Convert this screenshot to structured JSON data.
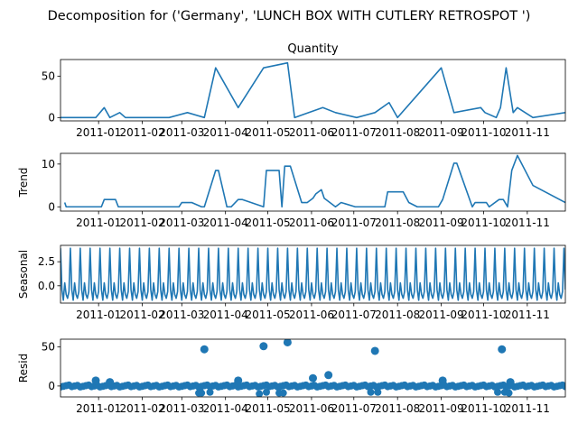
{
  "figure": {
    "suptitle": "Decomposition for ('Germany', 'LUNCH BOX WITH CUTLERY RETROSPOT ')"
  },
  "chart_data": [
    {
      "panel": "observed",
      "type": "line",
      "title": "Quantity",
      "ylabel": "",
      "color": "#1f77b4",
      "xlim": [
        "2011-12-05",
        "2011-11-28"
      ],
      "ylim": [
        -4,
        70
      ],
      "yticks": [
        0,
        50
      ],
      "xticks": [
        "2011-01",
        "2011-02",
        "2011-03",
        "2011-04",
        "2011-05",
        "2011-06",
        "2011-07",
        "2011-08",
        "2011-09",
        "2011-10",
        "2011-11"
      ],
      "x": [
        "2010-12-05",
        "2010-12-30",
        "2011-01-05",
        "2011-01-09",
        "2011-01-16",
        "2011-01-20",
        "2011-02-20",
        "2011-03-05",
        "2011-03-17",
        "2011-03-25",
        "2011-04-10",
        "2011-04-28",
        "2011-05-15",
        "2011-05-20",
        "2011-06-09",
        "2011-06-18",
        "2011-07-03",
        "2011-07-16",
        "2011-07-26",
        "2011-08-01",
        "2011-09-01",
        "2011-09-10",
        "2011-09-29",
        "2011-10-02",
        "2011-10-10",
        "2011-10-13",
        "2011-10-17",
        "2011-10-22",
        "2011-10-25",
        "2011-11-05",
        "2011-11-28"
      ],
      "values": [
        0,
        0,
        12,
        0,
        6,
        0,
        0,
        6,
        0,
        60,
        12,
        60,
        66,
        0,
        12,
        6,
        0,
        6,
        18,
        0,
        60,
        6,
        12,
        6,
        0,
        12,
        60,
        6,
        12,
        0,
        6
      ]
    },
    {
      "panel": "trend",
      "type": "line",
      "title": "",
      "ylabel": "Trend",
      "color": "#1f77b4",
      "ylim": [
        -1,
        12.5
      ],
      "yticks": [
        0,
        10
      ],
      "xticks": [
        "2011-01",
        "2011-02",
        "2011-03",
        "2011-04",
        "2011-05",
        "2011-06",
        "2011-07",
        "2011-08",
        "2011-09",
        "2011-10",
        "2011-11"
      ],
      "x": [
        "2010-12-08",
        "2010-12-09",
        "2011-01-03",
        "2011-01-05",
        "2011-01-13",
        "2011-01-15",
        "2011-02-27",
        "2011-03-01",
        "2011-03-08",
        "2011-03-15",
        "2011-03-17",
        "2011-03-25",
        "2011-03-27",
        "2011-04-02",
        "2011-04-05",
        "2011-04-10",
        "2011-04-13",
        "2011-04-28",
        "2011-04-30",
        "2011-05-09",
        "2011-05-11",
        "2011-05-13",
        "2011-05-17",
        "2011-05-25",
        "2011-05-29",
        "2011-06-02",
        "2011-06-04",
        "2011-06-08",
        "2011-06-10",
        "2011-06-14",
        "2011-06-18",
        "2011-06-22",
        "2011-07-02",
        "2011-07-23",
        "2011-07-25",
        "2011-08-05",
        "2011-08-09",
        "2011-08-15",
        "2011-08-30",
        "2011-09-02",
        "2011-09-10",
        "2011-09-12",
        "2011-09-23",
        "2011-09-25",
        "2011-10-03",
        "2011-10-05",
        "2011-10-12",
        "2011-10-15",
        "2011-10-18",
        "2011-10-21",
        "2011-10-25",
        "2011-11-05",
        "2011-11-28"
      ],
      "values": [
        1,
        0,
        0,
        1.7,
        1.7,
        0,
        0,
        1,
        1,
        0,
        0,
        8.5,
        8.5,
        0,
        0,
        1.7,
        1.7,
        0,
        8.5,
        8.5,
        0,
        9.5,
        9.5,
        1,
        1,
        2,
        3,
        4,
        2,
        1,
        0,
        1,
        0,
        0,
        3.5,
        3.5,
        1,
        0,
        0,
        1.7,
        10.2,
        10.2,
        0,
        1,
        1,
        0,
        1.7,
        1.7,
        0,
        8.5,
        12,
        5,
        1
      ]
    },
    {
      "panel": "seasonal",
      "type": "line",
      "title": "",
      "ylabel": "Seasonal",
      "color": "#1f77b4",
      "ylim": [
        -1.8,
        4.2
      ],
      "yticks": [
        0.0,
        2.5
      ],
      "ytick_labels": [
        "0.0",
        "2.5"
      ],
      "xticks": [
        "2011-01",
        "2011-02",
        "2011-03",
        "2011-04",
        "2011-05",
        "2011-06",
        "2011-07",
        "2011-08",
        "2011-09",
        "2011-10",
        "2011-11"
      ],
      "period_days": 7,
      "cycle_values": [
        3.9,
        -0.4,
        -1.5,
        0.3,
        -0.9,
        -1.3,
        -0.6
      ],
      "x_start": "2010-12-05",
      "x_end": "2011-11-28"
    },
    {
      "panel": "resid",
      "type": "scatter",
      "title": "",
      "ylabel": "Resid",
      "color": "#1f77b4",
      "ylim": [
        -14,
        60
      ],
      "yticks": [
        0,
        50
      ],
      "baseline": 0,
      "xticks": [
        "2011-01",
        "2011-02",
        "2011-03",
        "2011-04",
        "2011-05",
        "2011-06",
        "2011-07",
        "2011-08",
        "2011-09",
        "2011-10",
        "2011-11"
      ],
      "outliers": [
        {
          "x": "2010-12-30",
          "y": 7
        },
        {
          "x": "2011-01-09",
          "y": 5
        },
        {
          "x": "2011-03-17",
          "y": 47
        },
        {
          "x": "2011-04-10",
          "y": 7
        },
        {
          "x": "2011-04-28",
          "y": 51
        },
        {
          "x": "2011-05-15",
          "y": 56
        },
        {
          "x": "2011-06-02",
          "y": 10
        },
        {
          "x": "2011-06-13",
          "y": 14
        },
        {
          "x": "2011-07-16",
          "y": 45
        },
        {
          "x": "2011-09-02",
          "y": 7
        },
        {
          "x": "2011-10-14",
          "y": 47
        },
        {
          "x": "2011-10-20",
          "y": 5
        }
      ],
      "negatives": [
        {
          "x": "2011-03-13",
          "y": -9
        },
        {
          "x": "2011-03-15",
          "y": -9
        },
        {
          "x": "2011-03-21",
          "y": -8
        },
        {
          "x": "2011-04-25",
          "y": -10
        },
        {
          "x": "2011-04-30",
          "y": -8
        },
        {
          "x": "2011-05-09",
          "y": -9
        },
        {
          "x": "2011-05-12",
          "y": -9
        },
        {
          "x": "2011-07-13",
          "y": -8
        },
        {
          "x": "2011-07-18",
          "y": -8
        },
        {
          "x": "2011-10-11",
          "y": -8
        },
        {
          "x": "2011-10-16",
          "y": -8
        },
        {
          "x": "2011-10-19",
          "y": -9
        }
      ],
      "baseline_points_every_days": 2
    }
  ]
}
